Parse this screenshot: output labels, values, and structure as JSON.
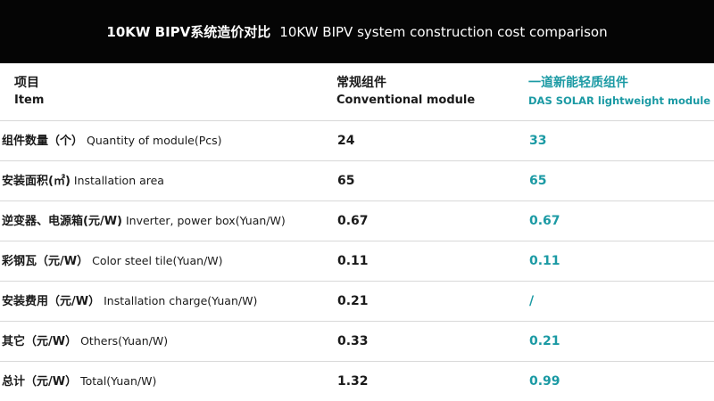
{
  "title": {
    "cn": "10KW BIPV系统造价对比",
    "en": "10KW BIPV system construction cost comparison"
  },
  "header": {
    "item": {
      "cn": "项目",
      "en": "Item"
    },
    "conventional": {
      "cn": "常规组件",
      "en": "Conventional module"
    },
    "das": {
      "cn": "一道新能轻质组件",
      "en": "DAS SOLAR lightweight module"
    }
  },
  "rows": [
    {
      "cn": "组件数量（个）",
      "en": "Quantity of module(Pcs)",
      "conventional": "24",
      "das": "33"
    },
    {
      "cn": "安装面积(㎡)",
      "en": "Installation area",
      "conventional": "65",
      "das": "65"
    },
    {
      "cn": "逆变器、电源箱(元/W)",
      "en": "Inverter, power box(Yuan/W)",
      "conventional": "0.67",
      "das": "0.67"
    },
    {
      "cn": "彩钢瓦（元/W）",
      "en": "Color steel tile(Yuan/W)",
      "conventional": "0.11",
      "das": "0.11"
    },
    {
      "cn": "安装费用（元/W）",
      "en": "Installation charge(Yuan/W)",
      "conventional": "0.21",
      "das": "/"
    },
    {
      "cn": "其它（元/W）",
      "en": "Others(Yuan/W)",
      "conventional": "0.33",
      "das": "0.21"
    },
    {
      "cn": "总计（元/W）",
      "en": "Total(Yuan/W)",
      "conventional": "1.32",
      "das": "0.99"
    }
  ],
  "colors": {
    "title_bg": "#050505",
    "accent": "#1b9aa4",
    "text": "#1a1a1a",
    "divider": "#d8d8d8"
  }
}
